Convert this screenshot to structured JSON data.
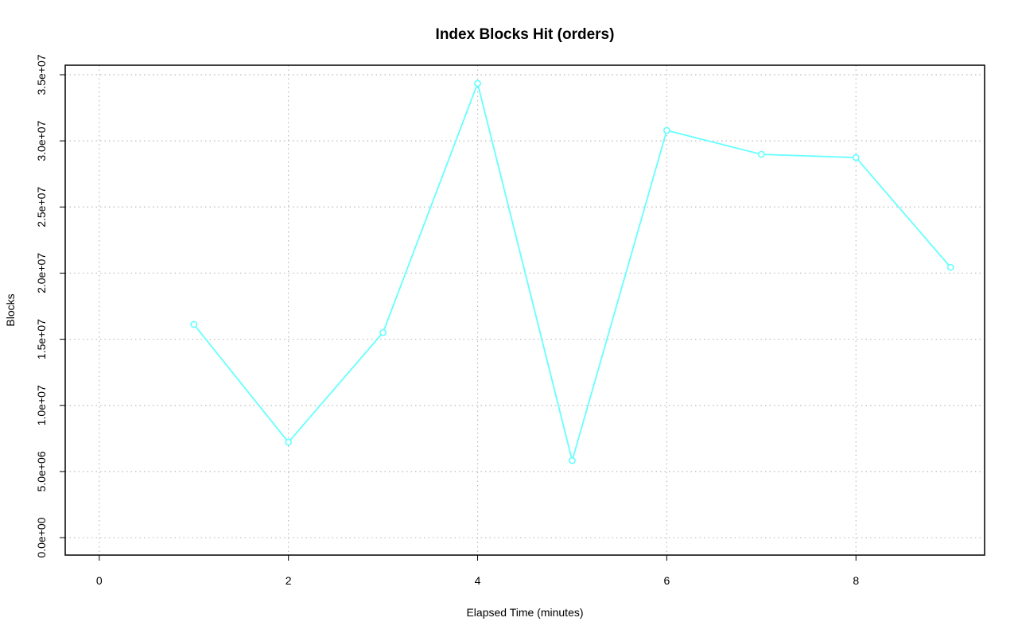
{
  "chart_data": {
    "type": "line",
    "title": "Index Blocks Hit (orders)",
    "x_label": "Elapsed Time (minutes)",
    "y_label": "Blocks",
    "x": [
      1,
      2,
      3,
      4,
      5,
      6,
      7,
      8,
      9
    ],
    "series": [
      {
        "name": "orders",
        "color": "#66ffff",
        "values": [
          16120000,
          7216000,
          15510000,
          34340000,
          5830000,
          30790000,
          28980000,
          28740000,
          20440000
        ]
      }
    ],
    "xlim": [
      -0.36,
      9.36
    ],
    "xticks": [
      0,
      2,
      4,
      6,
      8
    ],
    "ylim": [
      -1320000,
      35720000
    ],
    "yticks": [
      {
        "value": 0,
        "label": "0.0e+00"
      },
      {
        "value": 5000000,
        "label": "5.0e+06"
      },
      {
        "value": 10000000,
        "label": "1.0e+07"
      },
      {
        "value": 15000000,
        "label": "1.5e+07"
      },
      {
        "value": 20000000,
        "label": "2.0e+07"
      },
      {
        "value": 25000000,
        "label": "2.5e+07"
      },
      {
        "value": 30000000,
        "label": "3.0e+07"
      },
      {
        "value": 35000000,
        "label": "3.5e+07"
      }
    ],
    "grid": true
  }
}
